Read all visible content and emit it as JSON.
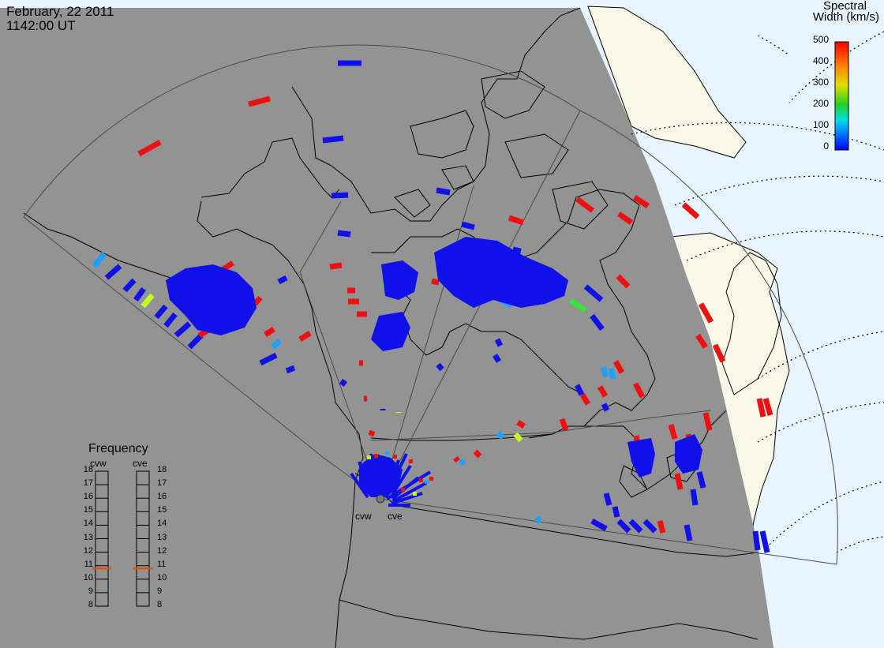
{
  "header": {
    "date": "February, 22 2011",
    "time": "1142:00 UT"
  },
  "colorbar": {
    "title_line1": "Spectral",
    "title_line2": "Width (km/s)",
    "ticks": [
      "500",
      "400",
      "300",
      "200",
      "100",
      "0"
    ],
    "range": [
      0,
      500
    ]
  },
  "radars": [
    {
      "code": "cvw"
    },
    {
      "code": "cve"
    }
  ],
  "frequency_panel": {
    "title": "Frequency",
    "columns": [
      "cvw",
      "cve"
    ],
    "scale": [
      "18",
      "17",
      "16",
      "15",
      "14",
      "13",
      "12",
      "11",
      "10",
      "9",
      "8"
    ],
    "range_mhz": [
      8,
      18
    ],
    "cvw_mhz": 10.8,
    "cve_mhz": 10.8,
    "marker_color": "#e05010"
  },
  "colors": {
    "night": "#939393",
    "land_day": "#f8f8e8",
    "ocean_day": "#e8f4ff",
    "coast": "#000000",
    "fov": "#505050",
    "ring": "#000000"
  }
}
